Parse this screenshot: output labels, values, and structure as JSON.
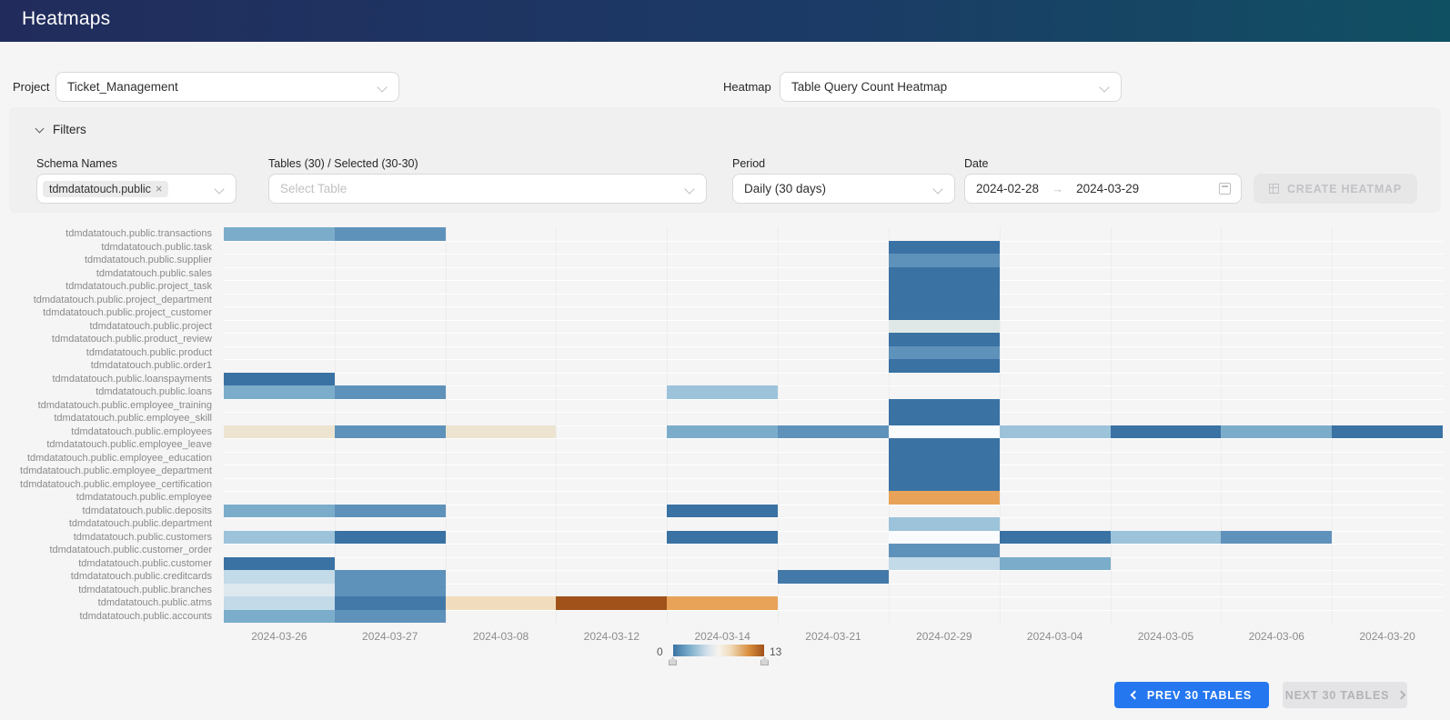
{
  "header": {
    "title": "Heatmaps"
  },
  "controls": {
    "project_label": "Project",
    "project_value": "Ticket_Management",
    "heatmap_label": "Heatmap",
    "heatmap_value": "Table Query Count Heatmap"
  },
  "filters": {
    "title": "Filters",
    "schema": {
      "label": "Schema Names",
      "tag": "tdmdatatouch.public"
    },
    "tables": {
      "label": "Tables (30) / Selected (30-30)",
      "placeholder": "Select Table"
    },
    "period": {
      "label": "Period",
      "value": "Daily (30 days)"
    },
    "date": {
      "label": "Date",
      "start": "2024-02-28",
      "end": "2024-03-29"
    },
    "create_button": "CREATE HEATMAP"
  },
  "icons": {
    "close": "×",
    "arrow_right": "→"
  },
  "pagination": {
    "prev": "PREV 30 TABLES",
    "next": "NEXT 30 TABLES"
  },
  "colors": {
    "header_gradient_start": "#212c5c",
    "header_gradient_end": "#105063",
    "accent_button_blue": "#2577f0",
    "page_background": "#f5f5f6",
    "panel_background": "#f0f0f1"
  },
  "chart_data": {
    "type": "heatmap",
    "title": "Table Query Count Heatmap",
    "rows": [
      "tdmdatatouch.public.transactions",
      "tdmdatatouch.public.task",
      "tdmdatatouch.public.supplier",
      "tdmdatatouch.public.sales",
      "tdmdatatouch.public.project_task",
      "tdmdatatouch.public.project_department",
      "tdmdatatouch.public.project_customer",
      "tdmdatatouch.public.project",
      "tdmdatatouch.public.product_review",
      "tdmdatatouch.public.product",
      "tdmdatatouch.public.order1",
      "tdmdatatouch.public.loanspayments",
      "tdmdatatouch.public.loans",
      "tdmdatatouch.public.employee_training",
      "tdmdatatouch.public.employee_skill",
      "tdmdatatouch.public.employees",
      "tdmdatatouch.public.employee_leave",
      "tdmdatatouch.public.employee_education",
      "tdmdatatouch.public.employee_department",
      "tdmdatatouch.public.employee_certification",
      "tdmdatatouch.public.employee",
      "tdmdatatouch.public.deposits",
      "tdmdatatouch.public.department",
      "tdmdatatouch.public.customers",
      "tdmdatatouch.public.customer_order",
      "tdmdatatouch.public.customer",
      "tdmdatatouch.public.creditcards",
      "tdmdatatouch.public.branches",
      "tdmdatatouch.public.atms",
      "tdmdatatouch.public.accounts"
    ],
    "columns": [
      "2024-03-26",
      "2024-03-27",
      "2024-03-08",
      "2024-03-12",
      "2024-03-14",
      "2024-03-21",
      "2024-02-29",
      "2024-03-04",
      "2024-03-05",
      "2024-03-06",
      "2024-03-20"
    ],
    "legend": {
      "min": 0,
      "max": 13,
      "min_label": "0",
      "max_label": "13",
      "colormap": "blue-white-orange diverging"
    },
    "palette": {
      "b1": {
        "hex": "#3a72a3",
        "approx_value": 1
      },
      "b2": {
        "hex": "#4379a8",
        "approx_value": 2
      },
      "b3": {
        "hex": "#5f92ba",
        "approx_value": 3
      },
      "b4": {
        "hex": "#7badcb",
        "approx_value": 4
      },
      "b5": {
        "hex": "#9cc3da",
        "approx_value": 5
      },
      "b6": {
        "hex": "#c3dae8",
        "approx_value": 5.5
      },
      "b7": {
        "hex": "#dde8ee",
        "approx_value": 6
      },
      "mint": {
        "hex": "#dfe8e6",
        "approx_value": 6
      },
      "w": {
        "hex": "#fafbfc",
        "approx_value": 7
      },
      "c1": {
        "hex": "#ece3d1",
        "approx_value": 8
      },
      "c2": {
        "hex": "#f2dcbe",
        "approx_value": 8.5
      },
      "o1": {
        "hex": "#e9a358",
        "approx_value": 10
      },
      "o2": {
        "hex": "#a0521a",
        "approx_value": 13
      }
    },
    "cells": [
      [
        0,
        0,
        "b4"
      ],
      [
        0,
        1,
        "b3"
      ],
      [
        1,
        6,
        "b1"
      ],
      [
        2,
        6,
        "b3"
      ],
      [
        3,
        6,
        "b1"
      ],
      [
        4,
        6,
        "b1"
      ],
      [
        5,
        6,
        "b1"
      ],
      [
        6,
        6,
        "b1"
      ],
      [
        7,
        6,
        "mint"
      ],
      [
        8,
        6,
        "b1"
      ],
      [
        9,
        6,
        "b3"
      ],
      [
        10,
        6,
        "b1"
      ],
      [
        11,
        0,
        "b1"
      ],
      [
        12,
        0,
        "b4"
      ],
      [
        12,
        1,
        "b3"
      ],
      [
        12,
        4,
        "b5"
      ],
      [
        13,
        6,
        "b1"
      ],
      [
        14,
        6,
        "b1"
      ],
      [
        15,
        0,
        "c1"
      ],
      [
        15,
        1,
        "b3"
      ],
      [
        15,
        2,
        "c1"
      ],
      [
        15,
        4,
        "b4"
      ],
      [
        15,
        5,
        "b3"
      ],
      [
        15,
        6,
        "w"
      ],
      [
        15,
        7,
        "b5"
      ],
      [
        15,
        8,
        "b1"
      ],
      [
        15,
        9,
        "b4"
      ],
      [
        15,
        10,
        "b1"
      ],
      [
        16,
        6,
        "b1"
      ],
      [
        17,
        6,
        "b1"
      ],
      [
        18,
        6,
        "b1"
      ],
      [
        19,
        6,
        "b1"
      ],
      [
        20,
        6,
        "o1"
      ],
      [
        21,
        0,
        "b4"
      ],
      [
        21,
        1,
        "b3"
      ],
      [
        21,
        4,
        "b1"
      ],
      [
        22,
        6,
        "b5"
      ],
      [
        23,
        0,
        "b5"
      ],
      [
        23,
        1,
        "b1"
      ],
      [
        23,
        4,
        "b1"
      ],
      [
        23,
        6,
        "w"
      ],
      [
        23,
        7,
        "b1"
      ],
      [
        23,
        8,
        "b5"
      ],
      [
        23,
        9,
        "b3"
      ],
      [
        24,
        6,
        "b3"
      ],
      [
        25,
        0,
        "b1"
      ],
      [
        25,
        6,
        "b6"
      ],
      [
        25,
        7,
        "b4"
      ],
      [
        26,
        0,
        "b6"
      ],
      [
        26,
        1,
        "b3"
      ],
      [
        26,
        5,
        "b2"
      ],
      [
        27,
        0,
        "b7"
      ],
      [
        27,
        1,
        "b3"
      ],
      [
        28,
        0,
        "b6"
      ],
      [
        28,
        1,
        "b2"
      ],
      [
        28,
        2,
        "c2"
      ],
      [
        28,
        3,
        "o2"
      ],
      [
        28,
        4,
        "o1"
      ],
      [
        29,
        0,
        "b4"
      ],
      [
        29,
        1,
        "b3"
      ]
    ]
  }
}
